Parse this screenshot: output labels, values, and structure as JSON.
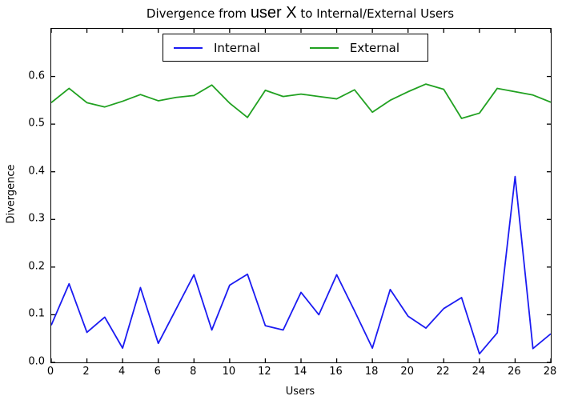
{
  "figure": {
    "title_prefix": "Divergence from ",
    "title_emph": "user X",
    "title_suffix": " to Internal/External Users"
  },
  "chart_data": {
    "type": "line",
    "title": "Divergence from user X to Internal/External Users",
    "xlabel": "Users",
    "ylabel": "Divergence",
    "xlim": [
      0,
      28
    ],
    "ylim": [
      0,
      0.7
    ],
    "grid": false,
    "legend_position": "upper center",
    "xticks": [
      0,
      2,
      4,
      6,
      8,
      10,
      12,
      14,
      16,
      18,
      20,
      22,
      24,
      26,
      28
    ],
    "xticklabels": [
      "0",
      "2",
      "4",
      "6",
      "8",
      "10",
      "12",
      "14",
      "16",
      "18",
      "20",
      "22",
      "24",
      "26",
      "28"
    ],
    "yticks": [
      0,
      0.1,
      0.2,
      0.3,
      0.4,
      0.5,
      0.6
    ],
    "yticklabels": [
      "0.0",
      "0.1",
      "0.2",
      "0.3",
      "0.4",
      "0.5",
      "0.6"
    ],
    "x": [
      0,
      1,
      2,
      3,
      4,
      5,
      6,
      7,
      8,
      9,
      10,
      11,
      12,
      13,
      14,
      15,
      16,
      17,
      18,
      19,
      20,
      21,
      22,
      23,
      24,
      25,
      26,
      27,
      28
    ],
    "series": [
      {
        "name": "Internal",
        "color": "#1b1bf2",
        "values": [
          0.078,
          0.165,
          0.063,
          0.095,
          0.03,
          0.157,
          0.04,
          0.112,
          0.184,
          0.068,
          0.162,
          0.185,
          0.077,
          0.068,
          0.147,
          0.1,
          0.184,
          0.108,
          0.03,
          0.153,
          0.097,
          0.072,
          0.113,
          0.136,
          0.018,
          0.062,
          0.39,
          0.029,
          0.06
        ]
      },
      {
        "name": "External",
        "color": "#21a121",
        "values": [
          0.545,
          0.575,
          0.545,
          0.536,
          0.548,
          0.562,
          0.549,
          0.556,
          0.56,
          0.582,
          0.544,
          0.514,
          0.571,
          0.558,
          0.563,
          0.558,
          0.553,
          0.572,
          0.525,
          0.55,
          0.568,
          0.584,
          0.573,
          0.512,
          0.523,
          0.575,
          0.568,
          0.561,
          0.546
        ]
      }
    ]
  }
}
